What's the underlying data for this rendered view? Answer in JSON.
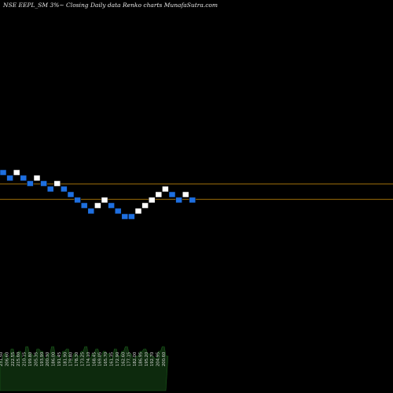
{
  "title": "NSE EEPL_SM 3%~  Closing Daily data  Renko  charts MunafaSutra.com",
  "colors": {
    "background": "#000000",
    "up_brick": "#ffffff",
    "down_brick": "#1e6fe0",
    "brick_border": "#000000",
    "level_line": "#a0700a",
    "volume_fill": "#0d2a0d",
    "volume_stroke": "#1b5e1b",
    "price_label": "#d8d8d8"
  },
  "chart_data": {
    "type": "renko",
    "box_size_pct": 3,
    "bricks": [
      {
        "dir": "down",
        "level": 0
      },
      {
        "dir": "down",
        "level": -1
      },
      {
        "dir": "up",
        "level": 0
      },
      {
        "dir": "down",
        "level": -1
      },
      {
        "dir": "down",
        "level": -2
      },
      {
        "dir": "up",
        "level": -1
      },
      {
        "dir": "down",
        "level": -2
      },
      {
        "dir": "down",
        "level": -3
      },
      {
        "dir": "up",
        "level": -2
      },
      {
        "dir": "down",
        "level": -3
      },
      {
        "dir": "down",
        "level": -4
      },
      {
        "dir": "down",
        "level": -5
      },
      {
        "dir": "down",
        "level": -6
      },
      {
        "dir": "down",
        "level": -7
      },
      {
        "dir": "up",
        "level": -6
      },
      {
        "dir": "up",
        "level": -5
      },
      {
        "dir": "down",
        "level": -6
      },
      {
        "dir": "down",
        "level": -7
      },
      {
        "dir": "down",
        "level": -8
      },
      {
        "dir": "down",
        "level": -8
      },
      {
        "dir": "up",
        "level": -7
      },
      {
        "dir": "up",
        "level": -6
      },
      {
        "dir": "up",
        "level": -5
      },
      {
        "dir": "up",
        "level": -4
      },
      {
        "dir": "up",
        "level": -3
      },
      {
        "dir": "down",
        "level": -4
      },
      {
        "dir": "down",
        "level": -5
      },
      {
        "dir": "up",
        "level": -4
      },
      {
        "dir": "down",
        "level": -5
      }
    ],
    "horizontal_levels": [
      -2.5,
      -5.3
    ],
    "price_labels": [
      "231.50",
      "206.60",
      "222.55",
      "215.60",
      "210.15",
      "199.80",
      "205.35",
      "193.90",
      "200.30",
      "186.00",
      "191.45",
      "181.90",
      "179.80",
      "178.30",
      "173.25",
      "174.10",
      "168.45",
      "169.05",
      "165.70",
      "161.35",
      "172.90",
      "162.60",
      "177.15",
      "182.00",
      "186.95",
      "195.20",
      "192.70",
      "204.95",
      "200.60"
    ],
    "volume": [
      8,
      11,
      9,
      13,
      10,
      12,
      9,
      14,
      11,
      10,
      13,
      12,
      9,
      11,
      14,
      10,
      9,
      12,
      13,
      8,
      11,
      10,
      12,
      14,
      9,
      11,
      13,
      10,
      12,
      11,
      9,
      13,
      10,
      12,
      14,
      11,
      9,
      10,
      12,
      13,
      11,
      10,
      9,
      12,
      14,
      10
    ]
  }
}
